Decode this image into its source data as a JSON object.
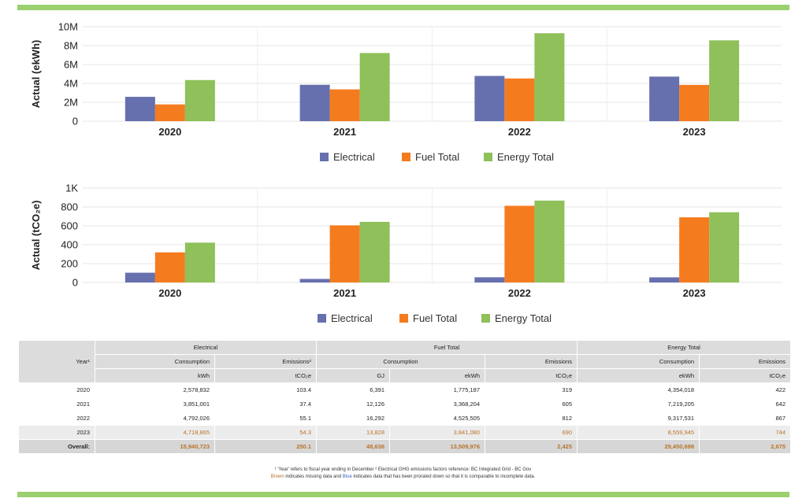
{
  "colors": {
    "electrical": "#6670ae",
    "fuel": "#f57b1f",
    "energy": "#8fc05a",
    "accent_bar": "#9bd070",
    "brown": "#b8732a",
    "blue": "#3a66c4"
  },
  "chart_data": [
    {
      "type": "bar",
      "categories": [
        "2020",
        "2021",
        "2022",
        "2023"
      ],
      "series": [
        {
          "name": "Electrical",
          "values": [
            2578832,
            3851001,
            4792026,
            4718865
          ]
        },
        {
          "name": "Fuel Total",
          "values": [
            1775187,
            3368204,
            4525505,
            3841080
          ]
        },
        {
          "name": "Energy Total",
          "values": [
            4354018,
            7219205,
            9317531,
            8559945
          ]
        }
      ],
      "ylabel": "Actual (ekWh)",
      "ylim": [
        0,
        10000000
      ],
      "yticks": [
        "0",
        "2M",
        "4M",
        "6M",
        "8M",
        "10M"
      ],
      "ytick_values": [
        0,
        2000000,
        4000000,
        6000000,
        8000000,
        10000000
      ],
      "legend": [
        "Electrical",
        "Fuel Total",
        "Energy Total"
      ]
    },
    {
      "type": "bar",
      "categories": [
        "2020",
        "2021",
        "2022",
        "2023"
      ],
      "series": [
        {
          "name": "Electrical",
          "values": [
            103.4,
            37.4,
            55.1,
            54.3
          ]
        },
        {
          "name": "Fuel Total",
          "values": [
            319,
            605,
            812,
            690
          ]
        },
        {
          "name": "Energy Total",
          "values": [
            422,
            642,
            867,
            744
          ]
        }
      ],
      "ylabel": "Actual (tCO₂e)",
      "ylim": [
        0,
        1000
      ],
      "yticks": [
        "0",
        "200",
        "400",
        "600",
        "800",
        "1K"
      ],
      "ytick_values": [
        0,
        200,
        400,
        600,
        800,
        1000
      ],
      "legend": [
        "Electrical",
        "Fuel Total",
        "Energy Total"
      ]
    }
  ],
  "table": {
    "year_header": "Year¹",
    "groups": [
      "Electrical",
      "Fuel Total",
      "Energy Total"
    ],
    "subheaders": [
      "Consumption",
      "Emissions²",
      "Consumption",
      "Emissions",
      "Consumption",
      "Emissions"
    ],
    "units": [
      "kWh",
      "tCO₂e",
      "GJ",
      "ekWh",
      "tCO₂e",
      "ekWh",
      "tCO₂e"
    ],
    "rows": [
      {
        "year": "2020",
        "values": [
          "2,578,832",
          "103.4",
          "6,391",
          "1,775,187",
          "319",
          "4,354,018",
          "422"
        ],
        "style": "light"
      },
      {
        "year": "2021",
        "values": [
          "3,851,001",
          "37.4",
          "12,126",
          "3,368,204",
          "605",
          "7,219,205",
          "642"
        ],
        "style": "light"
      },
      {
        "year": "2022",
        "values": [
          "4,792,026",
          "55.1",
          "16,292",
          "4,525,505",
          "812",
          "9,317,531",
          "867"
        ],
        "style": "light"
      },
      {
        "year": "2023",
        "values": [
          "4,718,865",
          "54.3",
          "13,828",
          "3,841,080",
          "690",
          "8,559,945",
          "744"
        ],
        "style": "shade"
      }
    ],
    "overall": {
      "label": "Overall:",
      "values": [
        "15,940,723",
        "250.1",
        "48,636",
        "13,509,976",
        "2,425",
        "29,450,698",
        "2,675"
      ]
    }
  },
  "notes": {
    "line1": "¹ 'Year' refers to fiscal year ending in December    ² Electrical GHG emissions factors reference: BC Integrated Grid - BC Gov",
    "line2_brown": "Brown",
    "line2_mid": " indicates missing data and ",
    "line2_blue": "Blue",
    "line2_end": " indicates data that has been prorated down so that it is comparable to incomplete data."
  }
}
